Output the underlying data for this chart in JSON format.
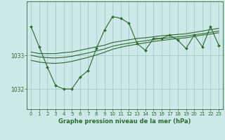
{
  "bg_color": "#cce8e8",
  "grid_color": "#aacfcf",
  "line_color": "#2d6a2d",
  "marker_color": "#2d6a2d",
  "title": "Graphe pression niveau de la mer (hPa)",
  "xlim": [
    -0.5,
    23.5
  ],
  "ylim": [
    1031.4,
    1034.6
  ],
  "yticks": [
    1032,
    1033
  ],
  "xticks": [
    0,
    1,
    2,
    3,
    4,
    5,
    6,
    7,
    8,
    9,
    10,
    11,
    12,
    13,
    14,
    15,
    16,
    17,
    18,
    19,
    20,
    21,
    22,
    23
  ],
  "series1": [
    1033.85,
    1033.25,
    1032.65,
    1032.1,
    1032.0,
    1032.0,
    1032.35,
    1032.55,
    1033.2,
    1033.75,
    1034.15,
    1034.1,
    1033.95,
    1033.35,
    1033.15,
    1033.5,
    1033.5,
    1033.6,
    1033.45,
    1033.2,
    1033.6,
    1033.25,
    1033.85,
    1033.3
  ],
  "series2": [
    1033.1,
    1033.05,
    1033.05,
    1033.05,
    1033.08,
    1033.1,
    1033.15,
    1033.2,
    1033.25,
    1033.3,
    1033.38,
    1033.42,
    1033.46,
    1033.5,
    1033.52,
    1033.55,
    1033.58,
    1033.6,
    1033.62,
    1033.64,
    1033.68,
    1033.72,
    1033.76,
    1033.8
  ],
  "series3": [
    1033.0,
    1032.95,
    1032.93,
    1032.92,
    1032.94,
    1032.97,
    1033.02,
    1033.07,
    1033.13,
    1033.19,
    1033.27,
    1033.32,
    1033.36,
    1033.4,
    1033.43,
    1033.47,
    1033.5,
    1033.52,
    1033.55,
    1033.57,
    1033.61,
    1033.64,
    1033.68,
    1033.72
  ],
  "series4": [
    1032.85,
    1032.8,
    1032.77,
    1032.76,
    1032.78,
    1032.82,
    1032.88,
    1032.94,
    1033.01,
    1033.09,
    1033.18,
    1033.24,
    1033.29,
    1033.33,
    1033.37,
    1033.41,
    1033.44,
    1033.47,
    1033.5,
    1033.52,
    1033.56,
    1033.6,
    1033.63,
    1033.67
  ]
}
